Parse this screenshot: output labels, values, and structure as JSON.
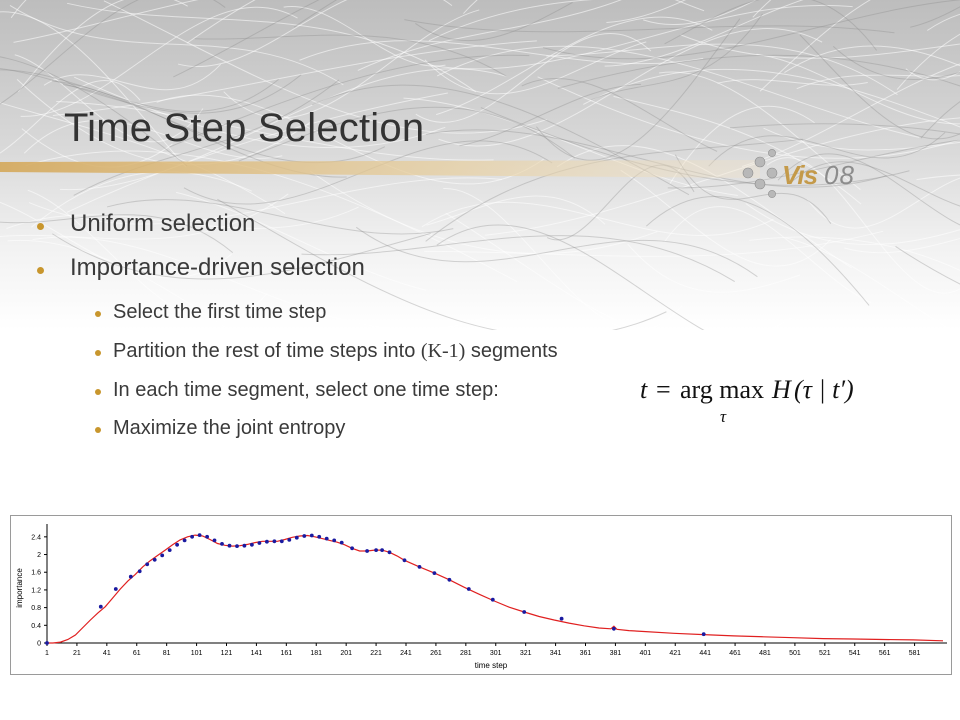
{
  "slide": {
    "title": "Time Step Selection",
    "bullets": [
      {
        "text": "Uniform selection"
      },
      {
        "text": "Importance-driven selection"
      }
    ],
    "sub_bullets": [
      {
        "text": "Select the first time step"
      },
      {
        "text_before": "Partition the rest of time steps into ",
        "math": "(K-1)",
        "text_after": " segments"
      },
      {
        "text": "In each time segment, select one time step:"
      },
      {
        "text": "Maximize the joint entropy"
      }
    ],
    "formula": {
      "lhs": "t",
      "eq": "=",
      "op": "arg max",
      "sub": "τ",
      "fn": "H",
      "args": "(τ | t′)"
    },
    "logo_text": "VIS08",
    "colors": {
      "bullet": "#c8962d",
      "title": "#333333",
      "curve": "#e02020",
      "marker": "#1a1aa0"
    }
  },
  "chart_data": {
    "type": "line",
    "title": "",
    "xlabel": "time step",
    "ylabel": "importance",
    "xlim": [
      1,
      600
    ],
    "ylim": [
      0,
      2.6
    ],
    "xticks": [
      1,
      21,
      41,
      61,
      81,
      101,
      121,
      141,
      161,
      181,
      201,
      221,
      241,
      261,
      281,
      301,
      321,
      341,
      361,
      381,
      401,
      421,
      441,
      461,
      481,
      501,
      521,
      541,
      561,
      581
    ],
    "yticks": [
      "0",
      "0.4",
      "0.8",
      "1.2",
      "1.6",
      "2",
      "2.4"
    ],
    "ytick_values": [
      0,
      0.4,
      0.8,
      1.2,
      1.6,
      2,
      2.4
    ],
    "grid": false,
    "series": [
      {
        "role": "importance curve",
        "color": "#e02020",
        "x": [
          1,
          5,
          10,
          15,
          20,
          25,
          30,
          35,
          40,
          45,
          50,
          55,
          60,
          65,
          70,
          75,
          80,
          85,
          90,
          95,
          100,
          105,
          110,
          115,
          120,
          125,
          130,
          135,
          140,
          145,
          150,
          155,
          160,
          165,
          170,
          175,
          180,
          185,
          190,
          195,
          200,
          205,
          210,
          215,
          220,
          225,
          230,
          235,
          240,
          250,
          260,
          270,
          280,
          290,
          300,
          310,
          320,
          330,
          340,
          350,
          360,
          370,
          378,
          380,
          382,
          390,
          400,
          420,
          440,
          460,
          480,
          500,
          520,
          540,
          560,
          580,
          600
        ],
        "y": [
          0.0,
          0.0,
          0.02,
          0.08,
          0.18,
          0.35,
          0.52,
          0.68,
          0.82,
          1.02,
          1.22,
          1.4,
          1.55,
          1.72,
          1.86,
          1.98,
          2.1,
          2.22,
          2.33,
          2.4,
          2.44,
          2.42,
          2.34,
          2.25,
          2.21,
          2.19,
          2.2,
          2.23,
          2.27,
          2.3,
          2.3,
          2.3,
          2.34,
          2.39,
          2.42,
          2.43,
          2.4,
          2.36,
          2.32,
          2.28,
          2.22,
          2.14,
          2.08,
          2.08,
          2.1,
          2.1,
          2.05,
          1.97,
          1.87,
          1.72,
          1.58,
          1.43,
          1.26,
          1.1,
          0.95,
          0.81,
          0.7,
          0.6,
          0.52,
          0.45,
          0.39,
          0.34,
          0.32,
          0.38,
          0.31,
          0.28,
          0.26,
          0.22,
          0.19,
          0.16,
          0.14,
          0.12,
          0.1,
          0.09,
          0.08,
          0.07,
          0.05
        ]
      },
      {
        "role": "selected time steps",
        "color": "#1a1aa0",
        "x": [
          1,
          37,
          47,
          57,
          63,
          68,
          73,
          78,
          83,
          88,
          93,
          98,
          103,
          108,
          113,
          118,
          123,
          128,
          133,
          138,
          143,
          148,
          153,
          158,
          163,
          168,
          173,
          178,
          183,
          188,
          193,
          198,
          205,
          215,
          221,
          225,
          230,
          240,
          250,
          260,
          270,
          283,
          299,
          320,
          345,
          380,
          440
        ],
        "y": [
          0.0,
          0.82,
          1.22,
          1.5,
          1.62,
          1.78,
          1.88,
          1.98,
          2.1,
          2.22,
          2.32,
          2.4,
          2.44,
          2.4,
          2.32,
          2.24,
          2.2,
          2.19,
          2.2,
          2.22,
          2.26,
          2.29,
          2.3,
          2.3,
          2.33,
          2.38,
          2.42,
          2.43,
          2.4,
          2.36,
          2.32,
          2.27,
          2.14,
          2.08,
          2.1,
          2.1,
          2.05,
          1.87,
          1.72,
          1.58,
          1.43,
          1.22,
          0.98,
          0.7,
          0.55,
          0.32,
          0.2
        ]
      }
    ]
  }
}
